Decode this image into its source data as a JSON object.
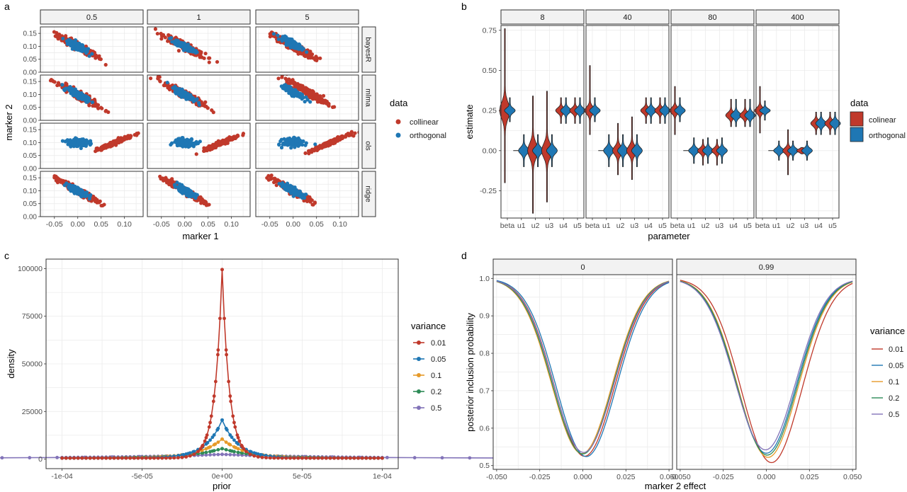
{
  "colors": {
    "collinear": "#c0392b",
    "orthogonal": "#1f77b4",
    "v001": "#c0392b",
    "v005": "#1f77b4",
    "v01": "#e69a2a",
    "v02": "#2e8b57",
    "v05": "#8273b8",
    "strip_fill": "#f2f2f2",
    "grid": "#ebebeb"
  },
  "chart_data": [
    {
      "panel": "a",
      "type": "scatter",
      "xlabel": "marker 1",
      "ylabel": "marker 2",
      "col_facets": [
        "0.5",
        "1",
        "5"
      ],
      "row_facets": [
        "bayesR",
        "mlma",
        "ols",
        "ridge"
      ],
      "xlim": [
        -0.08,
        0.14
      ],
      "ylim": [
        0.0,
        0.175
      ],
      "xticks": [
        {
          "v": -0.05,
          "label": "-0.05"
        },
        {
          "v": 0.0,
          "label": "0.00"
        },
        {
          "v": 0.05,
          "label": "0.05"
        },
        {
          "v": 0.1,
          "label": "0.10"
        }
      ],
      "yticks": [
        {
          "v": 0.0,
          "label": "0.00"
        },
        {
          "v": 0.05,
          "label": "0.05"
        },
        {
          "v": 0.1,
          "label": "0.10"
        },
        {
          "v": 0.15,
          "label": "0.15"
        }
      ],
      "legend": {
        "title": "data",
        "entries": [
          "collinear",
          "orthogonal"
        ]
      },
      "clouds": {
        "bayesR": [
          {
            "series": "collinear",
            "cx": 0.0,
            "cy": 0.1,
            "slope": -0.95,
            "spread_x": 0.04,
            "spread_perp": 0.012
          },
          {
            "series": "orthogonal",
            "cx": 0.0,
            "cy": 0.1,
            "slope": -0.9,
            "spread_x": 0.02,
            "spread_perp": 0.01
          }
        ],
        "bayesR_5_orth": {
          "cx": 0.0,
          "cy": 0.11
        },
        "mlma": [
          {
            "series": "collinear",
            "cx": 0.0,
            "cy": 0.1,
            "slope": -1.0,
            "spread_x": 0.04,
            "spread_perp": 0.012
          },
          {
            "series": "orthogonal",
            "cx": 0.0,
            "cy": 0.1,
            "slope": -0.9,
            "spread_x": 0.02,
            "spread_perp": 0.01
          }
        ],
        "ols": [
          {
            "series": "collinear",
            "cx": 0.08,
            "cy": 0.1,
            "slope": 0.75,
            "spread_x": 0.035,
            "spread_perp": 0.006
          },
          {
            "series": "orthogonal",
            "cx": 0.0,
            "cy": 0.1,
            "slope": 0.0,
            "spread_x": 0.02,
            "spread_perp": 0.012
          }
        ],
        "ridge": [
          {
            "series": "collinear",
            "cx": 0.0,
            "cy": 0.1,
            "slope": -1.0,
            "spread_x": 0.04,
            "spread_perp": 0.01
          },
          {
            "series": "orthogonal",
            "cx": 0.0,
            "cy": 0.1,
            "slope": -0.9,
            "spread_x": 0.02,
            "spread_perp": 0.01
          }
        ]
      }
    },
    {
      "panel": "b",
      "type": "violin",
      "xlabel": "parameter",
      "ylabel": "estimate",
      "facets": [
        "8",
        "40",
        "80",
        "400"
      ],
      "categories": [
        "beta",
        "u1",
        "u2",
        "u3",
        "u4",
        "u5"
      ],
      "ylim": [
        -0.42,
        0.78
      ],
      "yticks": [
        {
          "v": -0.25,
          "label": "-0.25"
        },
        {
          "v": 0.0,
          "label": "0.00"
        },
        {
          "v": 0.25,
          "label": "0.25"
        },
        {
          "v": 0.5,
          "label": "0.50"
        },
        {
          "v": 0.75,
          "label": "0.75"
        }
      ],
      "legend": {
        "title": "data",
        "entries": [
          "colinear",
          "orthogonal"
        ]
      },
      "violins": {
        "8": {
          "collinear": [
            [
              0.25,
              -0.2,
              0.76,
              0.05
            ],
            [
              0.0,
              0.0,
              0.0,
              0.0
            ],
            [
              0.0,
              -0.39,
              0.34,
              0.06
            ],
            [
              0.0,
              -0.32,
              0.37,
              0.06
            ],
            [
              0.25,
              0.17,
              0.33,
              0.1
            ],
            [
              0.25,
              0.17,
              0.33,
              0.1
            ]
          ],
          "orthogonal": [
            [
              0.25,
              0.18,
              0.33,
              0.1
            ],
            [
              0.0,
              -0.1,
              0.1,
              0.1
            ],
            [
              0.0,
              -0.1,
              0.1,
              0.1
            ],
            [
              0.0,
              -0.1,
              0.1,
              0.1
            ],
            [
              0.25,
              0.17,
              0.33,
              0.1
            ],
            [
              0.25,
              0.17,
              0.33,
              0.1
            ]
          ]
        },
        "40": {
          "collinear": [
            [
              0.25,
              0.1,
              0.53,
              0.05
            ],
            [
              0.0,
              0.0,
              0.0,
              0.0
            ],
            [
              0.0,
              -0.15,
              0.17,
              0.08
            ],
            [
              0.0,
              -0.18,
              0.21,
              0.07
            ],
            [
              0.25,
              0.17,
              0.33,
              0.1
            ],
            [
              0.25,
              0.17,
              0.33,
              0.1
            ]
          ],
          "orthogonal": [
            [
              0.25,
              0.18,
              0.33,
              0.1
            ],
            [
              0.0,
              -0.1,
              0.1,
              0.1
            ],
            [
              0.0,
              -0.1,
              0.1,
              0.1
            ],
            [
              0.0,
              -0.1,
              0.1,
              0.1
            ],
            [
              0.25,
              0.17,
              0.33,
              0.1
            ],
            [
              0.25,
              0.17,
              0.33,
              0.1
            ]
          ]
        },
        "80": {
          "collinear": [
            [
              0.25,
              0.1,
              0.4,
              0.06
            ],
            [
              0.0,
              0.0,
              0.0,
              0.0
            ],
            [
              0.0,
              -0.09,
              0.07,
              0.1
            ],
            [
              0.0,
              -0.09,
              0.07,
              0.1
            ],
            [
              0.22,
              0.15,
              0.32,
              0.1
            ],
            [
              0.22,
              0.15,
              0.32,
              0.1
            ]
          ],
          "orthogonal": [
            [
              0.25,
              0.18,
              0.33,
              0.1
            ],
            [
              0.0,
              -0.08,
              0.08,
              0.1
            ],
            [
              0.0,
              -0.08,
              0.08,
              0.1
            ],
            [
              0.0,
              -0.08,
              0.08,
              0.1
            ],
            [
              0.22,
              0.15,
              0.32,
              0.1
            ],
            [
              0.22,
              0.15,
              0.32,
              0.1
            ]
          ]
        },
        "400": {
          "collinear": [
            [
              0.25,
              0.11,
              0.4,
              0.06
            ],
            [
              0.0,
              0.0,
              0.0,
              0.0
            ],
            [
              0.0,
              -0.15,
              0.13,
              0.06
            ],
            [
              0.0,
              -0.02,
              0.02,
              0.15
            ],
            [
              0.17,
              0.1,
              0.24,
              0.12
            ],
            [
              0.17,
              0.1,
              0.24,
              0.12
            ]
          ],
          "orthogonal": [
            [
              0.25,
              0.19,
              0.31,
              0.1
            ],
            [
              0.0,
              -0.06,
              0.06,
              0.12
            ],
            [
              0.0,
              -0.06,
              0.06,
              0.12
            ],
            [
              0.0,
              -0.06,
              0.06,
              0.12
            ],
            [
              0.17,
              0.1,
              0.24,
              0.12
            ],
            [
              0.17,
              0.1,
              0.24,
              0.12
            ]
          ]
        }
      }
    },
    {
      "panel": "c",
      "type": "line",
      "xlabel": "prior",
      "ylabel": "density",
      "xlim": [
        -0.0001,
        0.0001
      ],
      "ylim": [
        0,
        100000
      ],
      "xticks": [
        {
          "v": -0.0001,
          "label": "-1e-04"
        },
        {
          "v": -5e-05,
          "label": "-5e-05"
        },
        {
          "v": 0.0,
          "label": "0e+00"
        },
        {
          "v": 5e-05,
          "label": "5e-05"
        },
        {
          "v": 0.0001,
          "label": "1e-04"
        }
      ],
      "yticks": [
        {
          "v": 0,
          "label": "0"
        },
        {
          "v": 25000,
          "label": "25000"
        },
        {
          "v": 50000,
          "label": "50000"
        },
        {
          "v": 75000,
          "label": "75000"
        },
        {
          "v": 100000,
          "label": "100000"
        }
      ],
      "legend": {
        "title": "variance",
        "entries": [
          "0.01",
          "0.05",
          "0.1",
          "0.2",
          "0.5"
        ]
      },
      "series": [
        {
          "name": "0.01",
          "peak": 99000
        },
        {
          "name": "0.05",
          "peak": 20000
        },
        {
          "name": "0.1",
          "peak": 10000
        },
        {
          "name": "0.2",
          "peak": 5000
        },
        {
          "name": "0.5",
          "peak": 2000
        }
      ]
    },
    {
      "panel": "d",
      "type": "line",
      "xlabel": "marker 2 effect",
      "ylabel": "posterior inclusion probability",
      "facets": [
        "0",
        "0.99"
      ],
      "xlim": [
        -0.05,
        0.05
      ],
      "ylim": [
        0.49,
        1.01
      ],
      "xticks": [
        {
          "v": -0.05,
          "label": "-0.050"
        },
        {
          "v": -0.025,
          "label": "-0.025"
        },
        {
          "v": 0.0,
          "label": "0.000"
        },
        {
          "v": 0.025,
          "label": "0.025"
        },
        {
          "v": 0.05,
          "label": "0.050"
        }
      ],
      "yticks": [
        {
          "v": 0.5,
          "label": "0.5"
        },
        {
          "v": 0.6,
          "label": "0.6"
        },
        {
          "v": 0.7,
          "label": "0.7"
        },
        {
          "v": 0.8,
          "label": "0.8"
        },
        {
          "v": 0.9,
          "label": "0.9"
        },
        {
          "v": 1.0,
          "label": "1.0"
        }
      ],
      "legend": {
        "title": "variance",
        "entries": [
          "0.01",
          "0.05",
          "0.1",
          "0.2",
          "0.5"
        ]
      },
      "series": {
        "0": [
          {
            "name": "0.01",
            "min": 0.525,
            "shift": 0.001
          },
          {
            "name": "0.05",
            "min": 0.524,
            "shift": 0.002
          },
          {
            "name": "0.1",
            "min": 0.532,
            "shift": -0.0005
          },
          {
            "name": "0.2",
            "min": 0.531,
            "shift": 0.0
          },
          {
            "name": "0.5",
            "min": 0.535,
            "shift": 0.0005
          }
        ],
        "0.99": [
          {
            "name": "0.01",
            "min": 0.508,
            "shift": 0.003
          },
          {
            "name": "0.05",
            "min": 0.533,
            "shift": 0.0
          },
          {
            "name": "0.1",
            "min": 0.522,
            "shift": 0.001
          },
          {
            "name": "0.2",
            "min": 0.528,
            "shift": 0.0005
          },
          {
            "name": "0.5",
            "min": 0.542,
            "shift": -0.0005
          }
        ]
      }
    }
  ],
  "panel_labels": [
    "a",
    "b",
    "c",
    "d"
  ]
}
